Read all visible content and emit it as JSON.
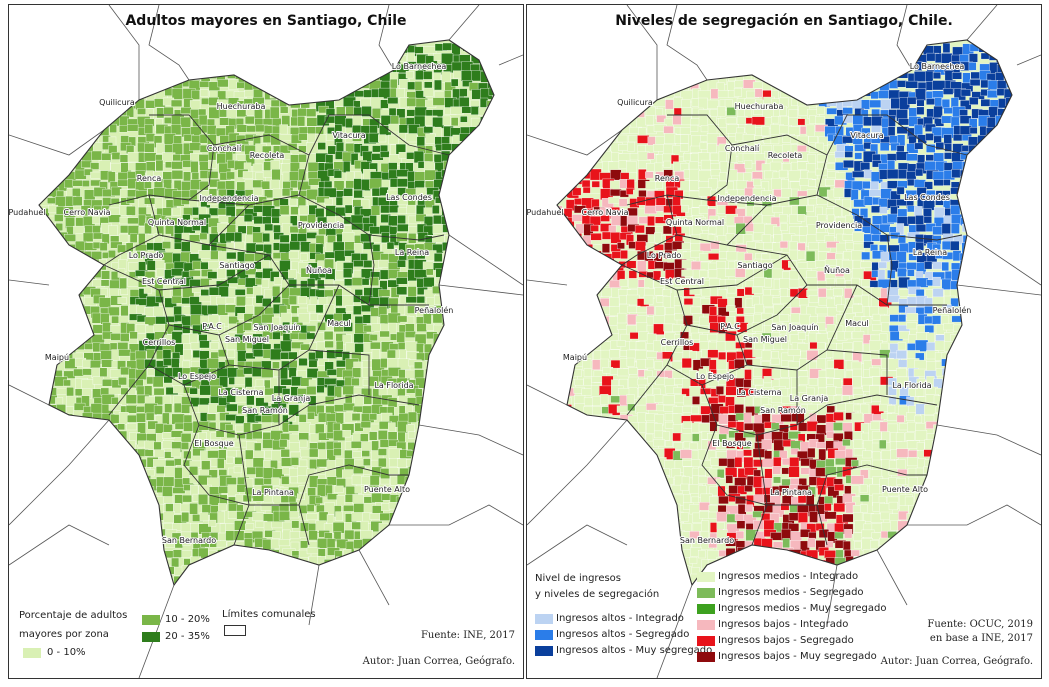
{
  "left": {
    "title": "Adultos mayores en Santiago, Chile",
    "legend_title_1": "Porcentaje de adultos",
    "legend_title_2": "mayores por zona",
    "classes": [
      {
        "label": "0 - 10%",
        "color": "#d9f0b4"
      },
      {
        "label": "10 - 20%",
        "color": "#7ab648"
      },
      {
        "label": "20 - 35%",
        "color": "#2e7d1c"
      }
    ],
    "limits_label": "Límites comunales",
    "source": "Fuente: INE, 2017",
    "author": "Autor: Juan Correa, Geógrafo."
  },
  "right": {
    "title": "Niveles de segregación en Santiago, Chile.",
    "legend_title_1": "Nivel de ingresos",
    "legend_title_2": "y niveles de segregación",
    "classes_col1": [
      {
        "label": "Ingresos altos - Integrado",
        "color": "#bcd3f2"
      },
      {
        "label": "Ingresos altos - Segregado",
        "color": "#2b7de9"
      },
      {
        "label": "Ingresos altos - Muy segregado",
        "color": "#0a3f9c"
      }
    ],
    "classes_col2": [
      {
        "label": "Ingresos medios - Integrado",
        "color": "#e2f5c2"
      },
      {
        "label": "Ingresos medios - Segregado",
        "color": "#7dbb5a"
      },
      {
        "label": "Ingresos medios - Muy segregado",
        "color": "#3da11f"
      },
      {
        "label": "Ingresos bajos - Integrado",
        "color": "#f6b8be"
      },
      {
        "label": "Ingresos bajos - Segregado",
        "color": "#e8131b"
      },
      {
        "label": "Ingresos bajos - Muy segregado",
        "color": "#8e0a0d"
      }
    ],
    "source_1": "Fuente: OCUC, 2019",
    "source_2": "en base a INE, 2017",
    "author": "Autor: Juan Correa, Geógrafo."
  },
  "communes": [
    "Lo Barnechea",
    "Quilicura",
    "Huechuraba",
    "Conchalí",
    "Recoleta",
    "Vitacura",
    "Renca",
    "Independencia",
    "Las Condes",
    "Pudahuel",
    "Cerro Navia",
    "Quinta Normal",
    "Providencia",
    "Lo Prado",
    "La Reina",
    "Santiago",
    "Ñuñoa",
    "Est Central",
    "Peñalolén",
    "P.A.C",
    "San Joaquín",
    "Macul",
    "Cerrillos",
    "San Miguel",
    "Maipú",
    "Lo Espejo",
    "La Florida",
    "La Cisterna",
    "La Granja",
    "San Ramón",
    "El Bosque",
    "La Pintana",
    "Puente Alto",
    "San Bernardo"
  ]
}
